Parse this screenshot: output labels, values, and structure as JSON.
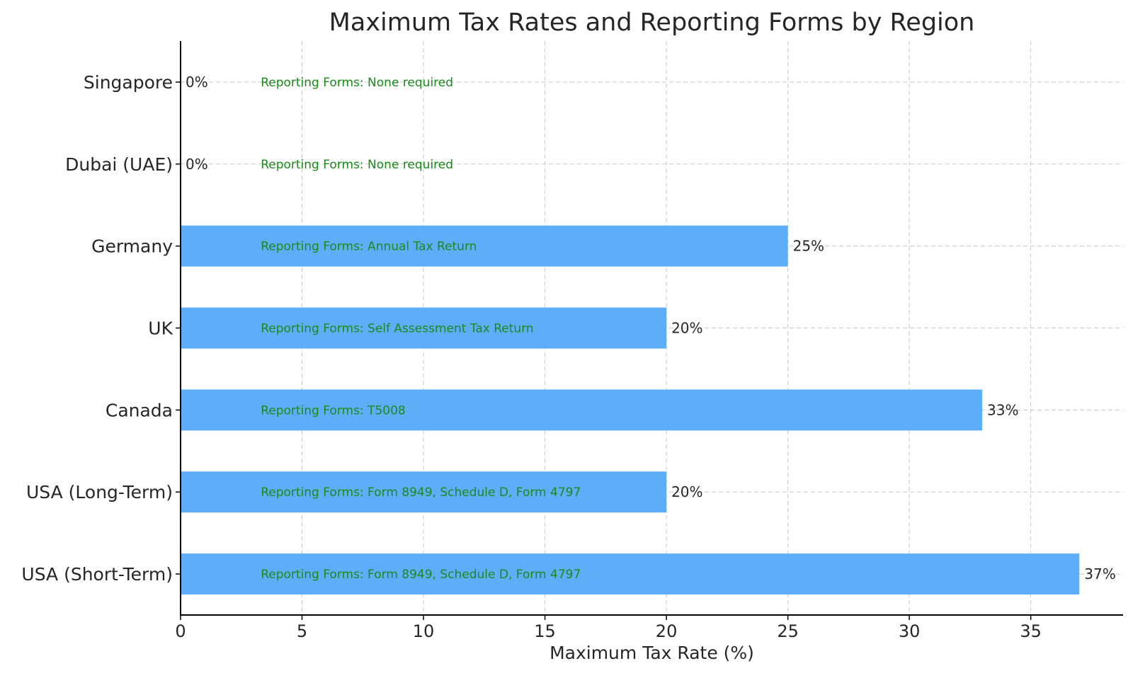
{
  "chart_data": {
    "type": "bar",
    "orientation": "horizontal",
    "title": "Maximum Tax Rates and Reporting Forms by Region",
    "xlabel": "Maximum Tax Rate (%)",
    "ylabel": "",
    "xlim": [
      0,
      38.8
    ],
    "xticks": [
      0,
      5,
      10,
      15,
      20,
      25,
      30,
      35
    ],
    "grid": true,
    "legend": "none",
    "bar_color": "#5dadf9",
    "annotation_color": "#1a8a1a",
    "categories": [
      "USA (Short-Term)",
      "USA (Long-Term)",
      "Canada",
      "UK",
      "Germany",
      "Dubai (UAE)",
      "Singapore"
    ],
    "values": [
      37,
      20,
      33,
      20,
      25,
      0,
      0
    ],
    "value_labels": [
      "37%",
      "20%",
      "33%",
      "20%",
      "25%",
      "0%",
      "0%"
    ],
    "annotations": [
      "Reporting Forms: Form 8949, Schedule D, Form 4797",
      "Reporting Forms: Form 8949, Schedule D, Form 4797",
      "Reporting Forms: T5008",
      "Reporting Forms: Self Assessment Tax Return",
      "Reporting Forms: Annual Tax Return",
      "Reporting Forms: None required",
      "Reporting Forms: None required"
    ],
    "annotation_x": 3.3
  }
}
